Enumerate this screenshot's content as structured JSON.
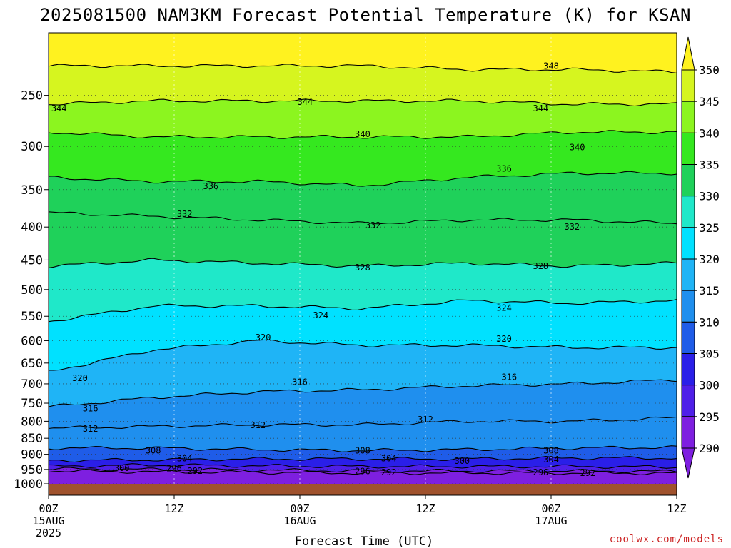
{
  "header": {
    "title": "2025081500 NAM3KM Forecast Potential Temperature (K) for KSAN"
  },
  "footer": {
    "xlabel": "Forecast Time (UTC)",
    "watermark": "coolwx.com/models"
  },
  "colors": {
    "ground": "#a0522d",
    "bands": {
      "290": "#7e1fe0",
      "295": "#4f1fe8",
      "300": "#2a1fe8",
      "305": "#1f5ce8",
      "310": "#1f8fee",
      "315": "#1fb4f6",
      "320": "#00e1ff",
      "325": "#1fe8c9",
      "330": "#1fd15a",
      "335": "#35e81f",
      "340": "#8cf51f",
      "345": "#d6f51f",
      "350": "#fff21f",
      "355": "#ffd21f"
    }
  },
  "chart_data": {
    "type": "heatmap",
    "title": "2025081500 NAM3KM Forecast Potential Temperature (K) for KSAN",
    "xlabel": "Forecast Time (UTC)",
    "ylabel": "",
    "x_ticks": [
      {
        "hour": 0,
        "label": "00Z",
        "sub": "15AUG",
        "sub2": "2025"
      },
      {
        "hour": 12,
        "label": "12Z",
        "sub": "",
        "sub2": ""
      },
      {
        "hour": 24,
        "label": "00Z",
        "sub": "16AUG",
        "sub2": ""
      },
      {
        "hour": 36,
        "label": "12Z",
        "sub": "",
        "sub2": ""
      },
      {
        "hour": 48,
        "label": "00Z",
        "sub": "17AUG",
        "sub2": ""
      },
      {
        "hour": 60,
        "label": "12Z",
        "sub": "",
        "sub2": ""
      }
    ],
    "xlim": [
      0,
      60
    ],
    "y_ticks": [
      250,
      300,
      350,
      400,
      450,
      500,
      550,
      600,
      650,
      700,
      750,
      800,
      850,
      900,
      950,
      1000
    ],
    "ylim": [
      200,
      1000
    ],
    "y_scale": "log-pressure",
    "grid": true,
    "colorbar": {
      "ticks": [
        290,
        295,
        300,
        305,
        310,
        315,
        320,
        325,
        330,
        335,
        340,
        345,
        350
      ],
      "orientation": "vertical",
      "position": "right"
    },
    "isentropes": [
      {
        "theta": 292,
        "p": [
          955,
          958,
          960,
          962,
          962,
          962,
          963
        ]
      },
      {
        "theta": 296,
        "p": [
          948,
          950,
          952,
          955,
          955,
          955,
          957
        ]
      },
      {
        "theta": 300,
        "p": [
          940,
          935,
          938,
          940,
          940,
          940,
          942
        ]
      },
      {
        "theta": 304,
        "p": [
          920,
          918,
          915,
          915,
          915,
          912,
          912
        ]
      },
      {
        "theta": 308,
        "p": [
          880,
          880,
          885,
          888,
          885,
          880,
          878
        ]
      },
      {
        "theta": 312,
        "p": [
          820,
          815,
          810,
          810,
          800,
          800,
          790
        ]
      },
      {
        "theta": 316,
        "p": [
          760,
          735,
          720,
          715,
          705,
          700,
          690
        ]
      },
      {
        "theta": 320,
        "p": [
          670,
          620,
          600,
          610,
          610,
          615,
          615
        ]
      },
      {
        "theta": 324,
        "p": [
          560,
          530,
          530,
          535,
          520,
          525,
          520
        ]
      },
      {
        "theta": 328,
        "p": [
          460,
          450,
          455,
          460,
          455,
          460,
          455
        ]
      },
      {
        "theta": 332,
        "p": [
          380,
          385,
          390,
          395,
          390,
          390,
          395
        ]
      },
      {
        "theta": 336,
        "p": [
          335,
          340,
          340,
          345,
          335,
          330,
          330
        ]
      },
      {
        "theta": 340,
        "p": [
          285,
          290,
          290,
          290,
          290,
          285,
          285
        ]
      },
      {
        "theta": 344,
        "p": [
          258,
          255,
          255,
          255,
          255,
          258,
          258
        ]
      },
      {
        "theta": 348,
        "p": [
          225,
          225,
          225,
          225,
          228,
          228,
          230
        ]
      }
    ],
    "contour_labels": [
      {
        "text": "344",
        "hour": 1.0,
        "p": 262
      },
      {
        "text": "344",
        "hour": 24.5,
        "p": 256
      },
      {
        "text": "344",
        "hour": 47.0,
        "p": 262
      },
      {
        "text": "348",
        "hour": 48.0,
        "p": 225
      },
      {
        "text": "340",
        "hour": 30.0,
        "p": 287
      },
      {
        "text": "340",
        "hour": 50.5,
        "p": 301
      },
      {
        "text": "336",
        "hour": 15.5,
        "p": 346
      },
      {
        "text": "336",
        "hour": 43.5,
        "p": 325
      },
      {
        "text": "332",
        "hour": 13.0,
        "p": 382
      },
      {
        "text": "332",
        "hour": 31.0,
        "p": 398
      },
      {
        "text": "332",
        "hour": 50.0,
        "p": 400
      },
      {
        "text": "328",
        "hour": 30.0,
        "p": 462
      },
      {
        "text": "328",
        "hour": 47.0,
        "p": 460
      },
      {
        "text": "324",
        "hour": 26.0,
        "p": 548
      },
      {
        "text": "324",
        "hour": 43.5,
        "p": 534
      },
      {
        "text": "320",
        "hour": 20.5,
        "p": 593
      },
      {
        "text": "320",
        "hour": 43.5,
        "p": 596
      },
      {
        "text": "320",
        "hour": 3.0,
        "p": 686
      },
      {
        "text": "316",
        "hour": 24.0,
        "p": 696
      },
      {
        "text": "316",
        "hour": 44.0,
        "p": 683
      },
      {
        "text": "316",
        "hour": 4.0,
        "p": 764
      },
      {
        "text": "312",
        "hour": 4.0,
        "p": 822
      },
      {
        "text": "312",
        "hour": 20.0,
        "p": 812
      },
      {
        "text": "312",
        "hour": 36.0,
        "p": 795
      },
      {
        "text": "308",
        "hour": 10.0,
        "p": 888
      },
      {
        "text": "308",
        "hour": 30.0,
        "p": 888
      },
      {
        "text": "308",
        "hour": 48.0,
        "p": 888
      },
      {
        "text": "304",
        "hour": 13.0,
        "p": 913
      },
      {
        "text": "304",
        "hour": 32.5,
        "p": 913
      },
      {
        "text": "304",
        "hour": 48.0,
        "p": 917
      },
      {
        "text": "300",
        "hour": 7.0,
        "p": 945
      },
      {
        "text": "300",
        "hour": 39.5,
        "p": 922
      },
      {
        "text": "296",
        "hour": 12.0,
        "p": 947
      },
      {
        "text": "296",
        "hour": 30.0,
        "p": 956
      },
      {
        "text": "296",
        "hour": 47.0,
        "p": 960
      },
      {
        "text": "292",
        "hour": 14.0,
        "p": 955
      },
      {
        "text": "292",
        "hour": 32.5,
        "p": 960
      },
      {
        "text": "292",
        "hour": 51.5,
        "p": 962
      }
    ]
  }
}
